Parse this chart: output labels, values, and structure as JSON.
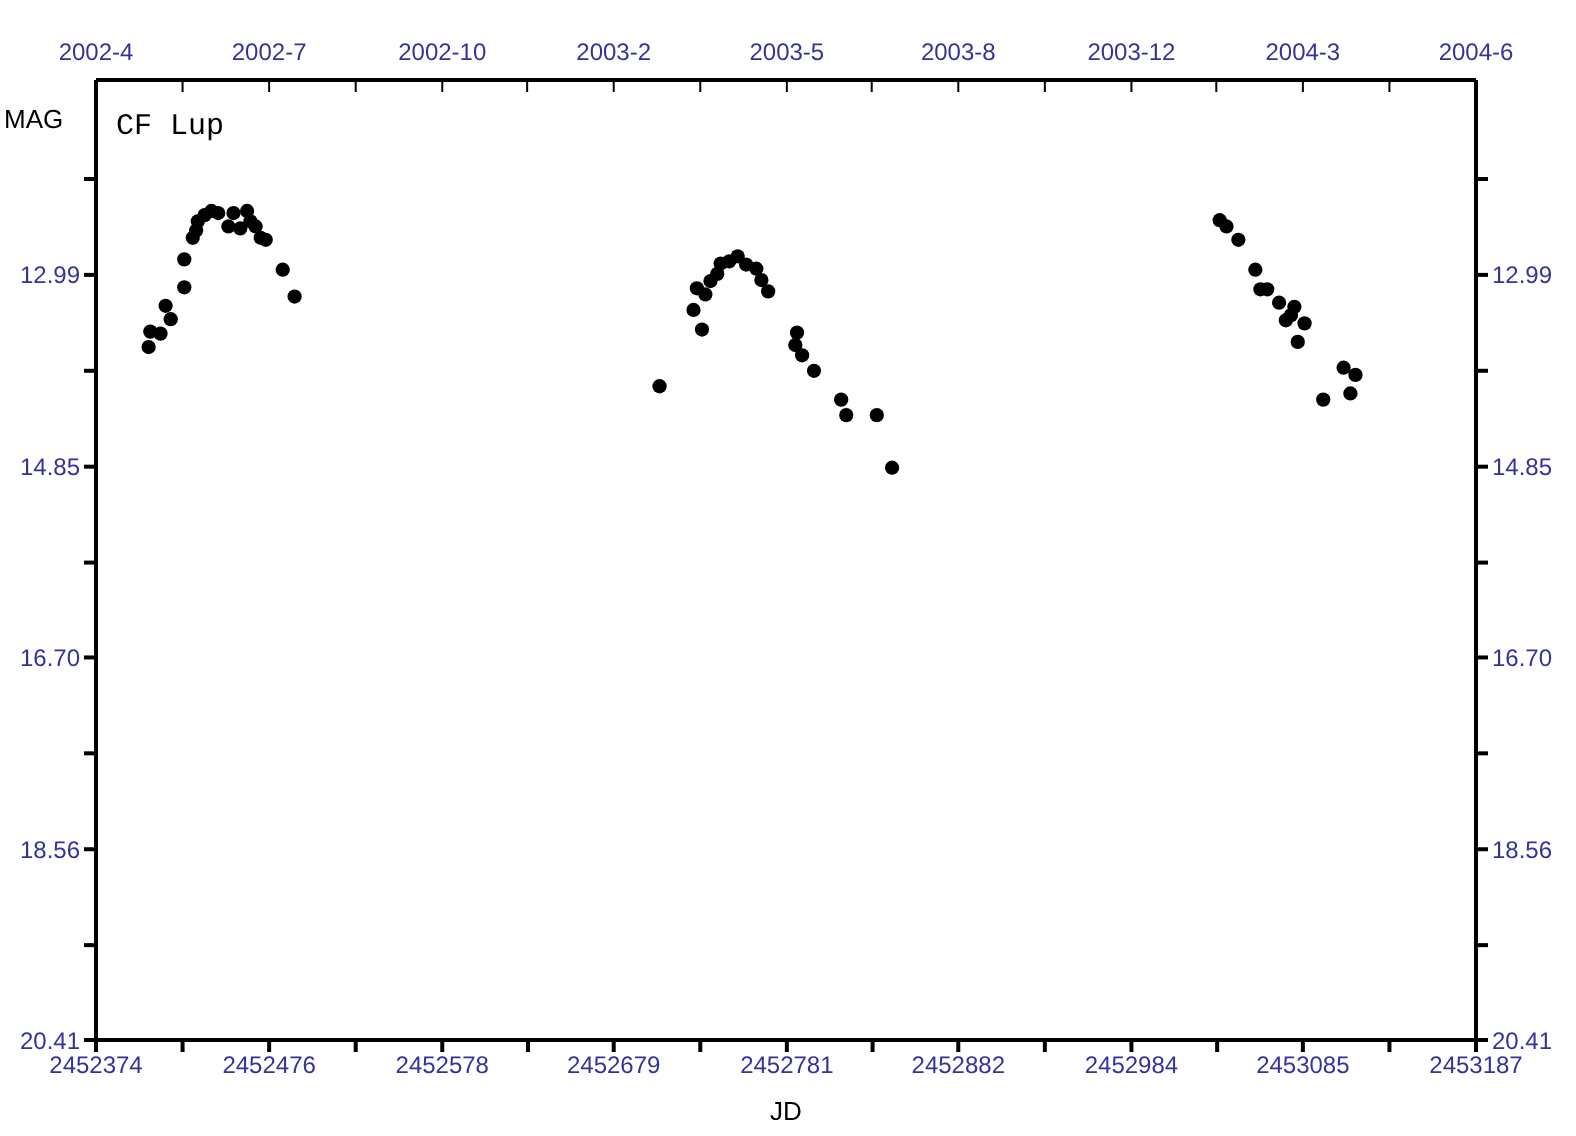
{
  "chart_data": {
    "type": "scatter",
    "title": "CF Lup",
    "xlabel": "JD",
    "ylabel": "MAG",
    "marker": "circle",
    "xlim": [
      2452374,
      2453187
    ],
    "xticks": [
      2452374,
      {
        "value": 2452425,
        "label": null
      },
      2452476,
      {
        "value": 2452527,
        "label": null
      },
      2452578,
      {
        "value": 2452628.5,
        "label": null
      },
      2452679,
      {
        "value": 2452730,
        "label": null
      },
      2452781,
      {
        "value": 2452831.5,
        "label": null
      },
      2452882,
      {
        "value": 2452933,
        "label": null
      },
      2452984,
      {
        "value": 2453034.5,
        "label": null
      },
      2453085,
      {
        "value": 2453136,
        "label": null
      },
      2453187
    ],
    "x2lim": [
      "2002-04-09",
      "2004-06-30"
    ],
    "x2ticks": [
      {
        "value": "2002-04-09",
        "label": "2002-4"
      },
      {
        "value": "2002-05-30",
        "label": null
      },
      {
        "value": "2002-07-20",
        "label": "2002-7"
      },
      {
        "value": "2002-09-09",
        "label": null
      },
      {
        "value": "2002-10-30",
        "label": "2002-10"
      },
      {
        "value": "2002-12-19",
        "label": null
      },
      {
        "value": "2003-02-08",
        "label": "2003-2"
      },
      {
        "value": "2003-03-31",
        "label": null
      },
      {
        "value": "2003-05-21",
        "label": "2003-5"
      },
      {
        "value": "2003-07-10",
        "label": null
      },
      {
        "value": "2003-08-30",
        "label": "2003-8"
      },
      {
        "value": "2003-10-20",
        "label": null
      },
      {
        "value": "2003-12-10",
        "label": "2003-12"
      },
      {
        "value": "2004-01-29",
        "label": null
      },
      {
        "value": "2004-03-20",
        "label": "2004-3"
      },
      {
        "value": "2004-05-10",
        "label": null
      },
      {
        "value": "2004-06-30",
        "label": "2004-6"
      }
    ],
    "ylim": [
      20.41,
      11.1
    ],
    "yticks": [
      {
        "value": 12.06,
        "label": null
      },
      12.99,
      {
        "value": 13.92,
        "label": null
      },
      14.85,
      {
        "value": 15.78,
        "label": null
      },
      {
        "value": 16.7,
        "label": "16.70"
      },
      {
        "value": 17.63,
        "label": null
      },
      18.56,
      {
        "value": 19.49,
        "label": null
      },
      20.41
    ],
    "y2lim": [
      20.41,
      11.1
    ],
    "y2ticks": [
      {
        "value": 12.06,
        "label": null
      },
      12.99,
      {
        "value": 13.92,
        "label": null
      },
      14.85,
      {
        "value": 15.78,
        "label": null
      },
      {
        "value": 16.7,
        "label": "16.70"
      },
      {
        "value": 17.63,
        "label": null
      },
      18.56,
      {
        "value": 19.49,
        "label": null
      },
      20.41
    ],
    "series": [
      {
        "color": "#000000",
        "x": [
          2452405,
          2452406,
          2452412,
          2452415,
          2452418,
          2452426,
          2452426,
          2452431,
          2452433,
          2452434,
          2452438,
          2452442,
          2452446,
          2452452,
          2452455,
          2452459,
          2452463,
          2452465,
          2452468,
          2452471,
          2452474,
          2452484,
          2452491,
          2452706,
          2452726,
          2452731,
          2452728,
          2452733,
          2452736,
          2452740,
          2452742,
          2452747,
          2452752,
          2452757,
          2452763,
          2452766,
          2452770,
          2452787,
          2452786,
          2452790,
          2452797,
          2452813,
          2452816,
          2452834,
          2452843,
          2453036,
          2453040,
          2453047,
          2453057,
          2453060,
          2453064,
          2453071,
          2453080,
          2453075,
          2453078,
          2453086,
          2453082,
          2453097,
          2453109,
          2453116,
          2453113
        ],
        "values": [
          13.69,
          13.54,
          13.56,
          13.29,
          13.42,
          13.11,
          12.84,
          12.63,
          12.56,
          12.47,
          12.41,
          12.37,
          12.39,
          12.52,
          12.39,
          12.54,
          12.37,
          12.47,
          12.52,
          12.63,
          12.65,
          12.94,
          13.2,
          14.07,
          13.33,
          13.52,
          13.12,
          13.18,
          13.05,
          12.98,
          12.88,
          12.86,
          12.81,
          12.89,
          12.93,
          13.04,
          13.15,
          13.55,
          13.67,
          13.77,
          13.92,
          14.2,
          14.35,
          14.35,
          14.86,
          12.46,
          12.52,
          12.65,
          12.94,
          13.13,
          13.13,
          13.26,
          13.3,
          13.43,
          13.38,
          13.46,
          13.64,
          14.2,
          13.89,
          13.96,
          14.14
        ]
      }
    ]
  }
}
